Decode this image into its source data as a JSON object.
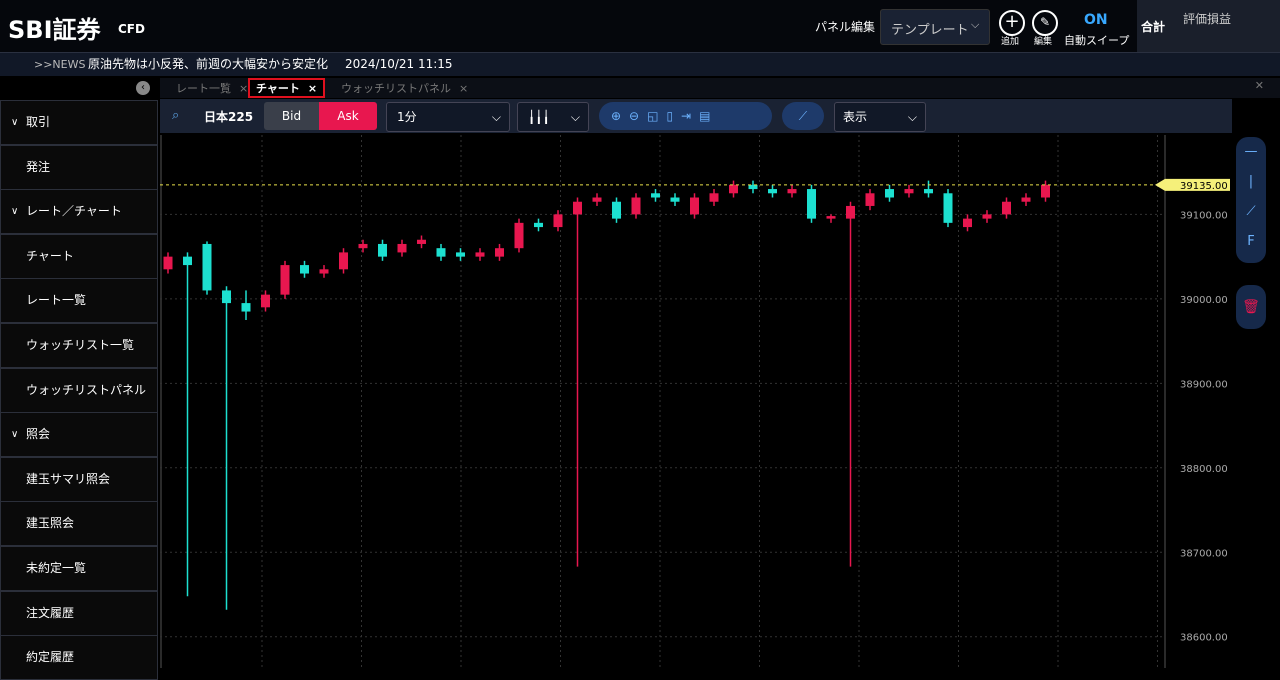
{
  "header": {
    "brand": "SBI証券",
    "product": "CFD",
    "panel_edit": "パネル編集",
    "template": "テンプレート",
    "add": "追加",
    "edit": "編集",
    "sweep_state": "ON",
    "sweep": "自動スイープ",
    "total": "合計",
    "pnl": "評価損益"
  },
  "news": {
    "tag": ">>NEWS",
    "headline": "原油先物は小反発、前週の大幅安から安定化",
    "time": "2024/10/21 11:15"
  },
  "sidebar": [
    {
      "title": "取引",
      "items": [
        "発注"
      ]
    },
    {
      "title": "レート／チャート",
      "items": [
        "チャート",
        "レート一覧",
        "ウォッチリスト一覧",
        "ウォッチリストパネル"
      ]
    },
    {
      "title": "照会",
      "items": [
        "建玉サマリ照会",
        "建玉照会",
        "未約定一覧",
        "注文履歴",
        "約定履歴"
      ]
    }
  ],
  "tabs": [
    "レート一覧",
    "チャート",
    "ウォッチリストパネル"
  ],
  "toolbar": {
    "symbol": "日本225",
    "bid": "Bid",
    "ask": "Ask",
    "interval": "1分",
    "view": "表示"
  },
  "chart_data": {
    "type": "candlestick",
    "up_color": "#e8174f",
    "down_color": "#1de0d0",
    "open": [
      39035,
      39050,
      39065,
      39010,
      38995,
      38990,
      39005,
      39040,
      39030,
      39035,
      39060,
      39065,
      39055,
      39065,
      39060,
      39055,
      39050,
      39050,
      39060,
      39090,
      39085,
      39100,
      39115,
      39115,
      39100,
      39125,
      39120,
      39100,
      39115,
      39125,
      39135,
      39130,
      39125,
      39130,
      39095,
      39095,
      39110,
      39130,
      39125,
      39130,
      39125,
      39085,
      39095,
      39100,
      39115,
      39120
    ],
    "close": [
      39050,
      39040,
      39010,
      38995,
      38985,
      39005,
      39040,
      39030,
      39035,
      39055,
      39065,
      39050,
      39065,
      39070,
      39050,
      39050,
      39055,
      39060,
      39090,
      39085,
      39100,
      39115,
      39120,
      39095,
      39120,
      39120,
      39115,
      39120,
      39125,
      39135,
      39130,
      39125,
      39130,
      39095,
      39098,
      39110,
      39125,
      39120,
      39130,
      39125,
      39090,
      39095,
      39100,
      39115,
      39120,
      39135
    ],
    "high": [
      39055,
      39055,
      39068,
      39015,
      39010,
      39010,
      39045,
      39045,
      39040,
      39060,
      39070,
      39070,
      39070,
      39075,
      39065,
      39060,
      39060,
      39065,
      39095,
      39095,
      39105,
      39120,
      39125,
      39120,
      39125,
      39130,
      39125,
      39125,
      39130,
      39140,
      39140,
      39135,
      39135,
      39135,
      39100,
      39115,
      39130,
      39135,
      39135,
      39140,
      39130,
      39100,
      39105,
      39120,
      39125,
      39140
    ],
    "low": [
      39030,
      38648,
      39005,
      38632,
      38975,
      38985,
      39000,
      39025,
      39025,
      39030,
      39055,
      39045,
      39050,
      39060,
      39045,
      39045,
      39045,
      39045,
      39055,
      39080,
      39080,
      38683,
      39110,
      39090,
      39095,
      39115,
      39110,
      39095,
      39110,
      39120,
      39125,
      39120,
      39120,
      39090,
      39090,
      38683,
      39105,
      39115,
      39120,
      39120,
      39085,
      39080,
      39090,
      39095,
      39110,
      39115
    ],
    "ylim": [
      38563,
      39194
    ],
    "yticks": [
      {
        "value": 38600,
        "label": "38600.00"
      },
      {
        "value": 38700,
        "label": "38700.00"
      },
      {
        "value": 38800,
        "label": "38800.00"
      },
      {
        "value": 38900,
        "label": "38900.00"
      },
      {
        "value": 39000,
        "label": "39000.00"
      },
      {
        "value": 39100,
        "label": "39100.00"
      }
    ],
    "current": {
      "value": 39135,
      "label": "39135.00"
    },
    "grid": true
  }
}
